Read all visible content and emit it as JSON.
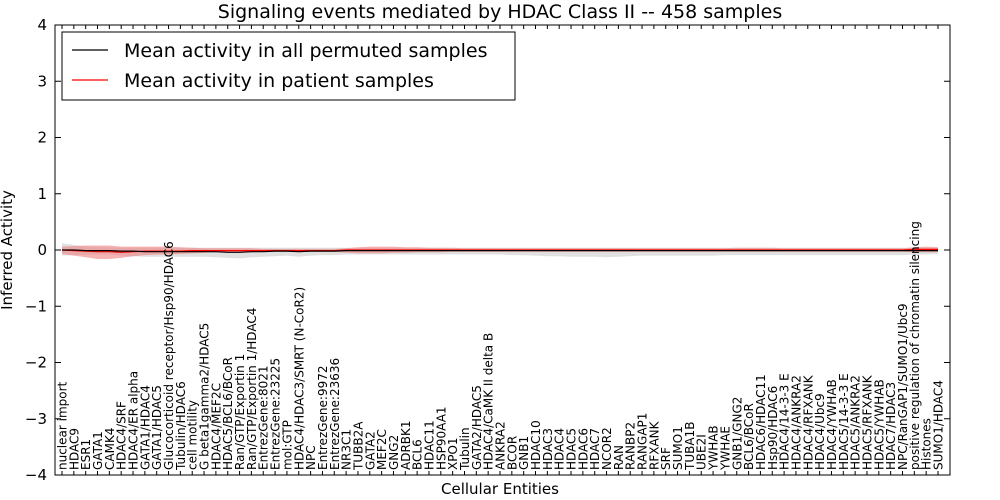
{
  "chart_data": {
    "type": "line",
    "title": "Signaling events mediated by HDAC Class II -- 458 samples",
    "xlabel": "Cellular Entities",
    "ylabel": "Inferred Activity",
    "ylim": [
      -4,
      4
    ],
    "yticks": [
      4,
      3,
      2,
      1,
      0,
      -1,
      -2,
      -3,
      -4
    ],
    "ytick_labels": [
      "4",
      "3",
      "2",
      "1",
      "0",
      "−1",
      "−2",
      "−3",
      "−4"
    ],
    "grid": false,
    "legend_position": "top-left",
    "categories": [
      "nuclear import",
      "HDAC9",
      "ESR1",
      "GATA1",
      "CAMK4",
      "HDAC4/SRF",
      "HDAC4/ER alpha",
      "GATA1/HDAC4",
      "GATA1/HDAC5",
      "Glucocorticoid receptor/Hsp90/HDAC6",
      "Tubulin/HDAC6",
      "cell motility",
      "G beta1gamma2/HDAC5",
      "HDAC4/MEF2C",
      "HDAC5/BCL6/BCoR",
      "Ran/GTP/Exportin 1",
      "Ran/GTP/Exportin 1/HDAC4",
      "EntrezGene:8021",
      "EntrezGene:23225",
      "mol:GTP",
      "HDAC4/HDAC3/SMRT (N-CoR2)",
      "NPC",
      "EntrezGene:9972",
      "EntrezGene:23636",
      "NR3C1",
      "TUBB2A",
      "GATA2",
      "MEF2C",
      "GNG2",
      "ADRBK1",
      "BCL6",
      "HDAC11",
      "HSP90AA1",
      "XPO1",
      "Tubulin",
      "GATA2/HDAC5",
      "HDAC4/CaMK II delta B",
      "ANKRA2",
      "BCOR",
      "GNB1",
      "HDAC10",
      "HDAC3",
      "HDAC4",
      "HDAC5",
      "HDAC6",
      "HDAC7",
      "NCOR2",
      "RAN",
      "RANBP2",
      "RANGAP1",
      "RFXANK",
      "SRF",
      "SUMO1",
      "TUBA1B",
      "UBE2I",
      "YWHAB",
      "YWHAE",
      "GNB1/GNG2",
      "BCL6/BCoR",
      "HDAC6/HDAC11",
      "Hsp90/HDAC6",
      "HDAC4/14-3-3 E",
      "HDAC4/ANKRA2",
      "HDAC4/RFXANK",
      "HDAC4/Ubc9",
      "HDAC4/YWHAB",
      "HDAC5/14-3-3 E",
      "HDAC5/ANKRA2",
      "HDAC5/RFXANK",
      "HDAC5/YWHAB",
      "HDAC7/HDAC3",
      "NPC/RanGAP1/SUMO1/Ubc9",
      "positive regulation of chromatin silencing",
      "Histones",
      "SUMO1/HDAC4"
    ],
    "series": [
      {
        "name": "Mean activity in all permuted samples",
        "color": "#000000",
        "values": [
          0.0,
          0.0,
          -0.01,
          -0.01,
          -0.01,
          -0.02,
          -0.02,
          -0.03,
          -0.03,
          -0.03,
          -0.03,
          -0.03,
          -0.03,
          -0.03,
          -0.04,
          -0.04,
          -0.03,
          -0.03,
          -0.02,
          -0.02,
          -0.03,
          -0.02,
          -0.02,
          -0.02,
          -0.01,
          -0.01,
          -0.01,
          -0.01,
          -0.01,
          -0.01,
          -0.01,
          -0.01,
          -0.01,
          -0.01,
          -0.01,
          -0.01,
          -0.01,
          -0.01,
          -0.01,
          -0.01,
          -0.01,
          -0.01,
          -0.01,
          -0.01,
          -0.01,
          -0.01,
          -0.01,
          -0.01,
          -0.01,
          -0.01,
          -0.01,
          -0.01,
          -0.01,
          -0.01,
          -0.01,
          -0.01,
          -0.01,
          -0.01,
          -0.01,
          -0.01,
          -0.01,
          -0.01,
          -0.01,
          -0.01,
          -0.01,
          -0.01,
          -0.01,
          -0.01,
          -0.01,
          -0.01,
          -0.01,
          -0.01,
          -0.01,
          -0.01,
          -0.01
        ],
        "band_upper": [
          0.12,
          0.09,
          0.06,
          0.05,
          0.05,
          0.04,
          0.04,
          0.04,
          0.04,
          0.04,
          0.04,
          0.04,
          0.04,
          0.04,
          0.04,
          0.04,
          0.04,
          0.04,
          0.04,
          0.04,
          0.04,
          0.04,
          0.04,
          0.04,
          0.04,
          0.04,
          0.04,
          0.04,
          0.04,
          0.04,
          0.04,
          0.04,
          0.04,
          0.04,
          0.04,
          0.04,
          0.04,
          0.04,
          0.04,
          0.04,
          0.04,
          0.04,
          0.04,
          0.04,
          0.04,
          0.04,
          0.04,
          0.04,
          0.04,
          0.04,
          0.04,
          0.04,
          0.04,
          0.04,
          0.04,
          0.04,
          0.04,
          0.04,
          0.04,
          0.04,
          0.04,
          0.04,
          0.04,
          0.04,
          0.04,
          0.04,
          0.04,
          0.04,
          0.04,
          0.04,
          0.04,
          0.04,
          0.04,
          0.04,
          0.04
        ],
        "band_lower": [
          -0.1,
          -0.09,
          -0.08,
          -0.08,
          -0.08,
          -0.1,
          -0.11,
          -0.12,
          -0.12,
          -0.12,
          -0.12,
          -0.12,
          -0.12,
          -0.13,
          -0.14,
          -0.15,
          -0.13,
          -0.12,
          -0.11,
          -0.1,
          -0.12,
          -0.1,
          -0.09,
          -0.09,
          -0.08,
          -0.08,
          -0.08,
          -0.08,
          -0.08,
          -0.08,
          -0.08,
          -0.08,
          -0.08,
          -0.08,
          -0.08,
          -0.08,
          -0.08,
          -0.08,
          -0.09,
          -0.09,
          -0.1,
          -0.11,
          -0.11,
          -0.12,
          -0.12,
          -0.12,
          -0.13,
          -0.12,
          -0.11,
          -0.1,
          -0.1,
          -0.1,
          -0.1,
          -0.1,
          -0.1,
          -0.1,
          -0.09,
          -0.09,
          -0.09,
          -0.09,
          -0.09,
          -0.09,
          -0.09,
          -0.09,
          -0.09,
          -0.09,
          -0.09,
          -0.09,
          -0.09,
          -0.09,
          -0.09,
          -0.09,
          -0.08,
          -0.08,
          -0.07
        ]
      },
      {
        "name": "Mean activity in patient samples",
        "color": "#ff0000",
        "values": [
          0.0,
          -0.01,
          -0.02,
          -0.03,
          -0.03,
          -0.04,
          -0.03,
          -0.02,
          -0.02,
          -0.02,
          -0.02,
          -0.01,
          -0.01,
          -0.01,
          -0.01,
          -0.01,
          -0.01,
          -0.01,
          -0.01,
          -0.01,
          -0.01,
          -0.01,
          -0.01,
          -0.01,
          0.0,
          0.0,
          0.0,
          0.0,
          0.0,
          0.0,
          0.0,
          0.0,
          0.0,
          0.0,
          0.0,
          0.0,
          0.0,
          0.0,
          0.0,
          0.0,
          0.0,
          0.0,
          0.0,
          0.0,
          0.0,
          0.0,
          0.0,
          0.0,
          0.0,
          0.0,
          0.0,
          0.0,
          0.0,
          0.0,
          0.0,
          0.0,
          0.0,
          0.0,
          0.0,
          0.0,
          0.0,
          0.0,
          0.0,
          0.0,
          0.0,
          0.0,
          0.0,
          0.0,
          0.0,
          0.0,
          0.0,
          0.0,
          0.01,
          0.01,
          0.01
        ],
        "band_upper": [
          0.06,
          0.07,
          0.08,
          0.08,
          0.08,
          0.06,
          0.06,
          0.06,
          0.06,
          0.06,
          0.05,
          0.04,
          0.03,
          0.03,
          0.03,
          0.03,
          0.03,
          0.02,
          0.02,
          0.02,
          0.02,
          0.02,
          0.02,
          0.02,
          0.03,
          0.05,
          0.06,
          0.06,
          0.06,
          0.05,
          0.05,
          0.04,
          0.04,
          0.04,
          0.03,
          0.03,
          0.03,
          0.03,
          0.03,
          0.03,
          0.03,
          0.03,
          0.03,
          0.03,
          0.03,
          0.03,
          0.03,
          0.03,
          0.03,
          0.03,
          0.03,
          0.03,
          0.03,
          0.03,
          0.03,
          0.03,
          0.03,
          0.04,
          0.04,
          0.04,
          0.04,
          0.03,
          0.03,
          0.03,
          0.03,
          0.03,
          0.03,
          0.03,
          0.03,
          0.03,
          0.03,
          0.03,
          0.05,
          0.06,
          0.05
        ],
        "band_lower": [
          -0.07,
          -0.1,
          -0.13,
          -0.16,
          -0.16,
          -0.14,
          -0.11,
          -0.09,
          -0.08,
          -0.08,
          -0.07,
          -0.06,
          -0.05,
          -0.04,
          -0.04,
          -0.04,
          -0.04,
          -0.03,
          -0.03,
          -0.03,
          -0.03,
          -0.03,
          -0.03,
          -0.03,
          -0.05,
          -0.06,
          -0.06,
          -0.06,
          -0.05,
          -0.05,
          -0.04,
          -0.04,
          -0.04,
          -0.03,
          -0.03,
          -0.03,
          -0.03,
          -0.03,
          -0.03,
          -0.03,
          -0.03,
          -0.03,
          -0.03,
          -0.03,
          -0.03,
          -0.03,
          -0.03,
          -0.03,
          -0.03,
          -0.03,
          -0.03,
          -0.03,
          -0.03,
          -0.03,
          -0.03,
          -0.03,
          -0.03,
          -0.03,
          -0.03,
          -0.03,
          -0.03,
          -0.03,
          -0.03,
          -0.03,
          -0.03,
          -0.03,
          -0.03,
          -0.03,
          -0.03,
          -0.03,
          -0.03,
          -0.03,
          -0.04,
          -0.04,
          -0.04
        ]
      }
    ],
    "band_colors": {
      "permuted": "#cccccc",
      "patient": "#f08080"
    }
  }
}
